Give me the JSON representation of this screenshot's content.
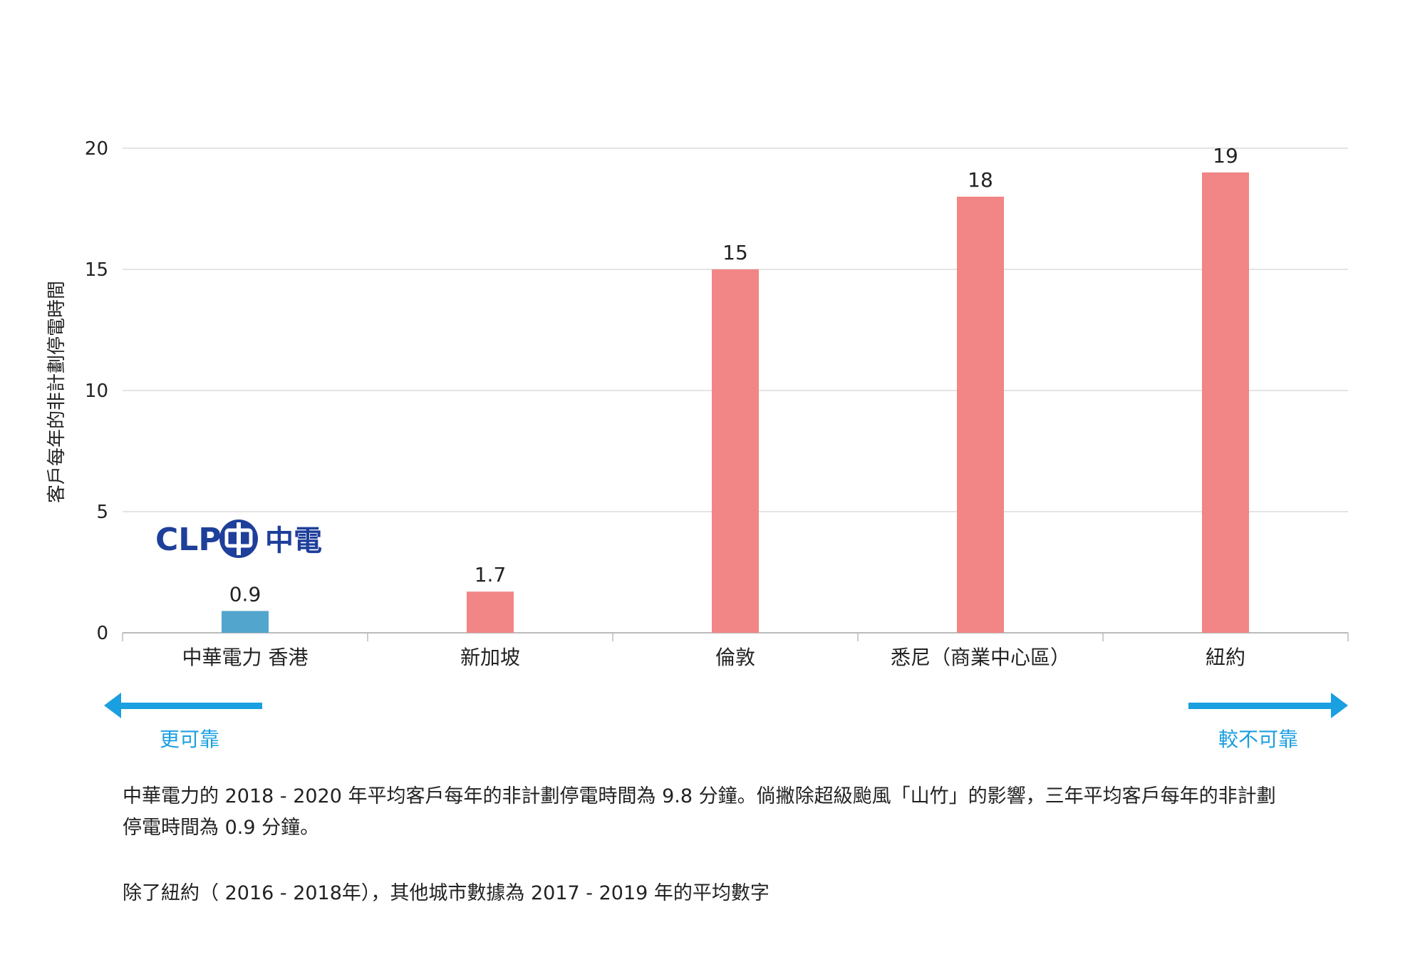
{
  "chart_data": {
    "type": "bar",
    "categories": [
      "中華電力 香港",
      "新加坡",
      "倫敦",
      "悉尼（商業中心區）",
      "紐約"
    ],
    "values": [
      0.9,
      1.7,
      15,
      18,
      19
    ],
    "value_labels": [
      "0.9",
      "1.7",
      "15",
      "18",
      "19"
    ],
    "bar_colors": [
      "#52a5cc",
      "#f28585",
      "#f28585",
      "#f28585",
      "#f28585"
    ],
    "ylabel": "客戶每年的非計劃停電時間",
    "xlabel": "",
    "title": "",
    "ylim": [
      0,
      20
    ],
    "yticks": [
      0,
      5,
      10,
      15,
      20
    ],
    "grid": true,
    "legend": "none"
  },
  "logo": {
    "text_latin": "CLP",
    "text_chinese": "中電",
    "color": "#1e3f9a"
  },
  "arrows": {
    "left_label": "更可靠",
    "right_label": "較不可靠",
    "color": "#1a9fe0"
  },
  "footnotes": {
    "line1": "中華電力的 2018 - 2020 年平均客戶每年的非計劃停電時間為 9.8 分鐘。倘撇除超級颱風「山竹」的影響，三年平均客戶每年的非計劃停電時間為 0.9 分鐘。",
    "line2": "除了紐約（ 2016 - 2018年），其他城市數據為 2017 - 2019 年的平均數字"
  }
}
